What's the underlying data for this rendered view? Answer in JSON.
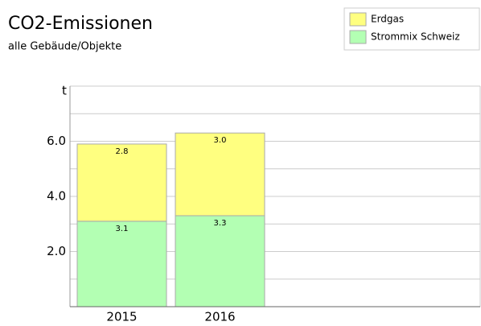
{
  "chart_data": {
    "type": "stacked_bar",
    "title": "CO2-Emissionen",
    "subtitle": "alle Gebäude/Objekte",
    "y_label": "t",
    "categories": [
      "2015",
      "2016"
    ],
    "series": [
      {
        "name": "Strommix Schweiz",
        "color": "#b3ffb3",
        "values": [
          3.1,
          3.3
        ],
        "value_labels": [
          "3.1",
          "3.3"
        ]
      },
      {
        "name": "Erdgas",
        "color": "#ffff80",
        "values": [
          2.8,
          3.0
        ],
        "value_labels": [
          "2.8",
          "3.0"
        ]
      }
    ],
    "ylim": [
      0,
      8
    ],
    "yticks": [
      {
        "value": 2,
        "label": "2.0"
      },
      {
        "value": 4,
        "label": "4.0"
      },
      {
        "value": 6,
        "label": "6.0"
      }
    ],
    "minor_yticks": [
      1,
      3,
      5,
      7
    ],
    "grid": true,
    "legend": "top-right"
  }
}
